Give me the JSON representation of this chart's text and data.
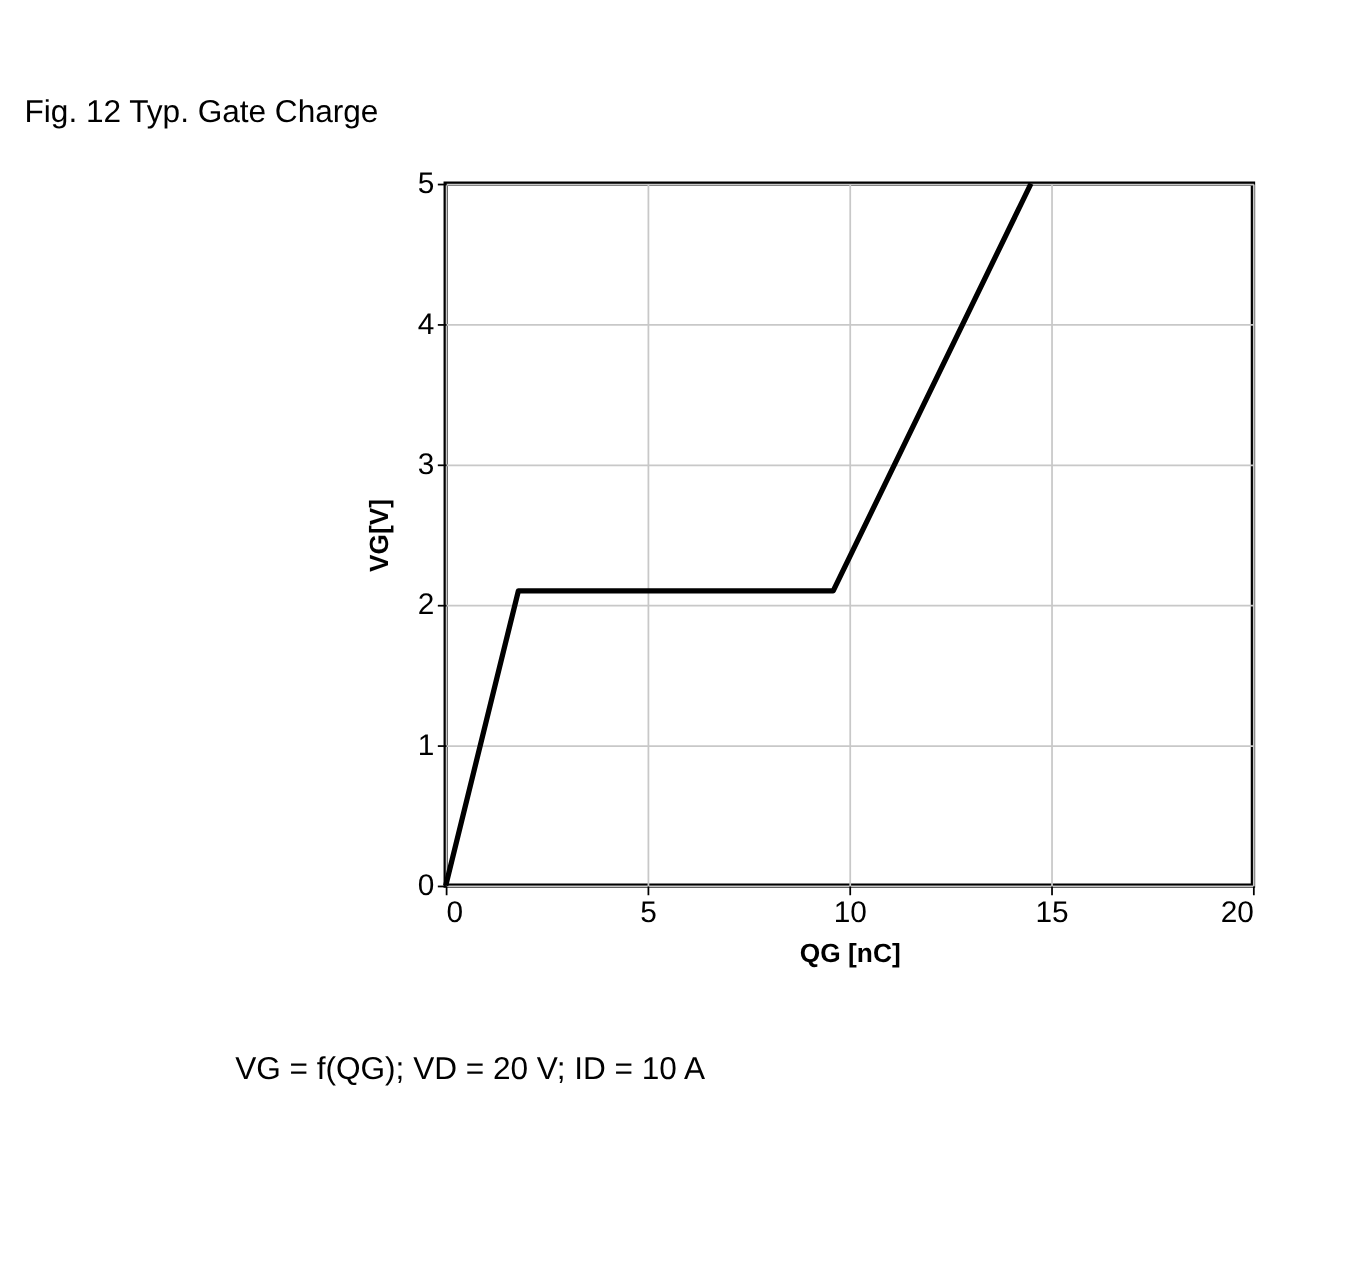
{
  "chart_data": {
    "type": "line",
    "title": "Fig. 12   Typ. Gate Charge",
    "xlabel": "QG [nC]",
    "ylabel": "VG[V]",
    "x": [
      0,
      1.8,
      9.6,
      14.5
    ],
    "series": [
      {
        "color": "#000000",
        "values": [
          0,
          2.1,
          2.1,
          5
        ]
      }
    ],
    "xlim": [
      0,
      20
    ],
    "xticks": [
      0,
      5,
      10,
      15,
      20
    ],
    "ylim": [
      0,
      5
    ],
    "yticks": [
      0,
      1,
      2,
      3,
      4,
      5
    ],
    "grid": true,
    "legend": false,
    "marker": "none",
    "line_style": "solid",
    "annotations": [
      "VG = f(QG); VD = 20 V; ID = 10 A"
    ]
  }
}
